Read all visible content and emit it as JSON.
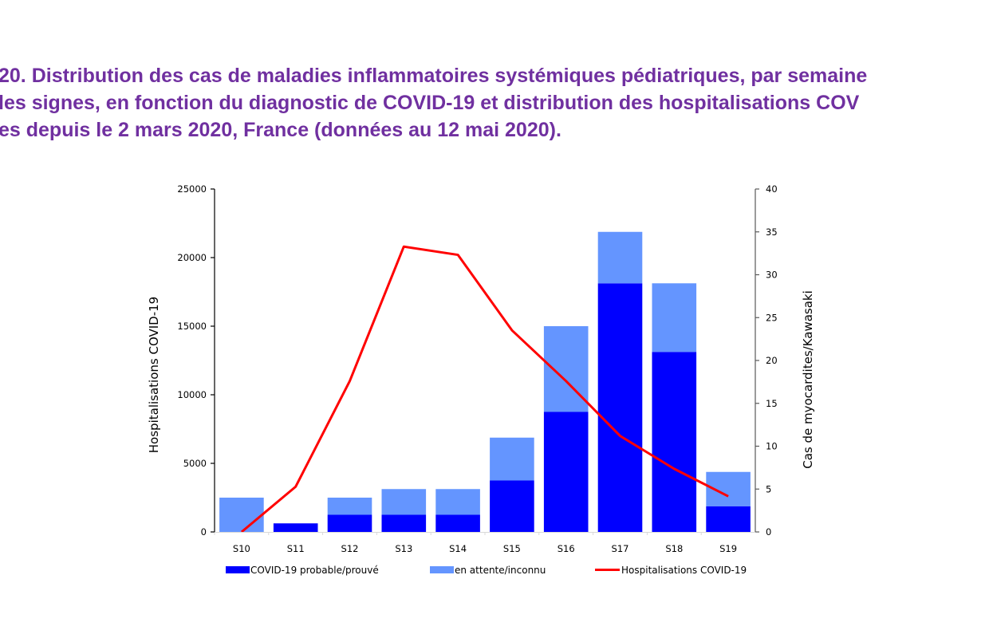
{
  "title_lines": [
    "20. Distribution des cas de maladies inflammatoires systémiques pédiatriques, par semaine",
    "les signes, en fonction du diagnostic de COVID-19 et distribution des hospitalisations COV",
    "es depuis le 2 mars 2020, France (données au 12 mai 2020)."
  ],
  "colors": {
    "title": "#7030a0",
    "confirmed": "#0000ff",
    "pending": "#6495ff",
    "line": "#ff0000"
  },
  "chart_data": {
    "type": "bar",
    "stacked": true,
    "categories": [
      "S10",
      "S11",
      "S12",
      "S13",
      "S14",
      "S15",
      "S16",
      "S17",
      "S18",
      "S19"
    ],
    "series": [
      {
        "name": "COVID-19 probable/prouvé",
        "axis": "right",
        "type": "bar",
        "values": [
          0,
          1,
          2,
          2,
          2,
          6,
          14,
          29,
          21,
          3
        ]
      },
      {
        "name": "en attente/inconnu",
        "axis": "right",
        "type": "bar",
        "values": [
          4,
          0,
          2,
          3,
          3,
          5,
          10,
          6,
          8,
          4
        ]
      },
      {
        "name": "Hospitalisations COVID-19",
        "axis": "left",
        "type": "line",
        "values": [
          0,
          3300,
          11000,
          20800,
          20200,
          14700,
          11000,
          7000,
          4600,
          2600
        ]
      }
    ],
    "ylabel_left": "Hospitalisations  COVID-19",
    "ylabel_right": "Cas de myocardites/Kawasaki",
    "ylim_left": [
      0,
      25000
    ],
    "ylim_right": [
      0,
      40
    ],
    "yticks_left": [
      "0",
      "5000",
      "10000",
      "15000",
      "20000",
      "25000"
    ],
    "yticks_right": [
      "0",
      "5",
      "10",
      "15",
      "20",
      "25",
      "30",
      "35",
      "40"
    ],
    "grid": false,
    "legend_position": "bottom"
  }
}
